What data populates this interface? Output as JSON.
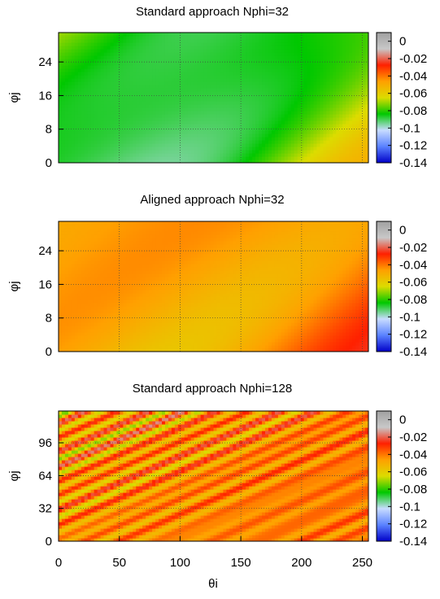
{
  "chart_data": [
    {
      "type": "heatmap",
      "title": "Standard approach Nphi=32",
      "ylabel": "φj",
      "xlim": [
        0,
        255
      ],
      "ylim": [
        0,
        31
      ],
      "yticks": [
        "0",
        "8",
        "16",
        "24"
      ],
      "ytick_values": [
        0,
        8,
        16,
        24
      ],
      "colorbar": {
        "range": [
          -0.14,
          0.01
        ],
        "ticks": [
          "0",
          "-0.02",
          "-0.04",
          "-0.06",
          "-0.08",
          "-0.1",
          "-0.12",
          "-0.14"
        ],
        "tick_values": [
          0,
          -0.02,
          -0.04,
          -0.06,
          -0.08,
          -0.1,
          -0.12,
          -0.14
        ]
      },
      "field": {
        "slope": 0.12,
        "mean_left": -0.085,
        "mean_right": -0.075,
        "amplitude": 0.035,
        "seed": 3
      }
    },
    {
      "type": "heatmap",
      "title": "Aligned approach Nphi=32",
      "ylabel": "φj",
      "xlim": [
        0,
        255
      ],
      "ylim": [
        0,
        31
      ],
      "yticks": [
        "0",
        "8",
        "16",
        "24"
      ],
      "ytick_values": [
        0,
        8,
        16,
        24
      ],
      "colorbar": {
        "range": [
          -0.14,
          0.01
        ],
        "ticks": [
          "0",
          "-0.02",
          "-0.04",
          "-0.06",
          "-0.08",
          "-0.1",
          "-0.12",
          "-0.14"
        ],
        "tick_values": [
          0,
          -0.02,
          -0.04,
          -0.06,
          -0.08,
          -0.1,
          -0.12,
          -0.14
        ]
      },
      "field": {
        "slope": 0.12,
        "mean_left": -0.05,
        "mean_right": -0.04,
        "amplitude": 0.02,
        "seed": 7
      }
    },
    {
      "type": "heatmap",
      "title": "Standard approach Nphi=128",
      "xlabel": "θi",
      "ylabel": "φj",
      "xlim": [
        0,
        255
      ],
      "ylim": [
        0,
        127
      ],
      "xticks": [
        "0",
        "50",
        "100",
        "150",
        "200",
        "250"
      ],
      "xtick_values": [
        0,
        50,
        100,
        150,
        200,
        250
      ],
      "yticks": [
        "0",
        "32",
        "64",
        "96"
      ],
      "ytick_values": [
        0,
        32,
        64,
        96
      ],
      "colorbar": {
        "range": [
          -0.14,
          0.01
        ],
        "ticks": [
          "0",
          "-0.02",
          "-0.04",
          "-0.06",
          "-0.08",
          "-0.1",
          "-0.12",
          "-0.14"
        ],
        "tick_values": [
          0,
          -0.02,
          -0.04,
          -0.06,
          -0.08,
          -0.1,
          -0.12,
          -0.14
        ]
      },
      "field": {
        "slope": 0.5,
        "mean_left": -0.045,
        "mean_right": -0.04,
        "amplitude": 0.02,
        "seed": 11
      }
    }
  ],
  "colormap": [
    "#0000c8",
    "#5a82ff",
    "#c8dcff",
    "#00c800",
    "#dcdc00",
    "#ffa000",
    "#ff2000",
    "#c8c8c8",
    "#a0a0a0"
  ]
}
